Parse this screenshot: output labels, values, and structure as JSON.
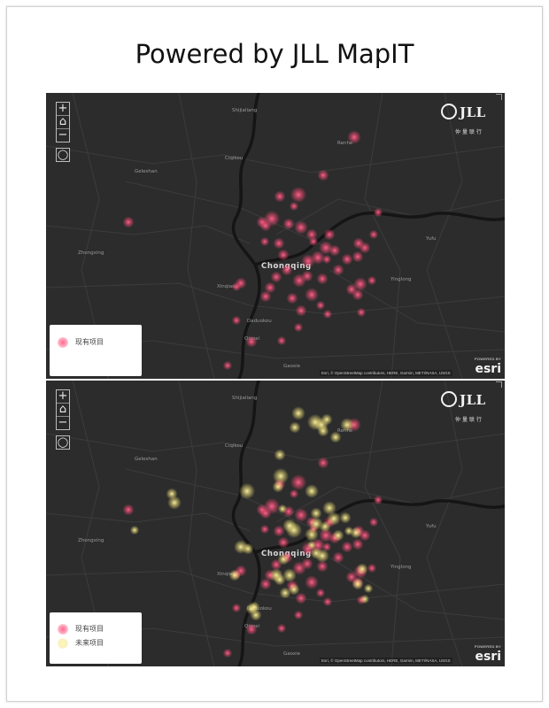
{
  "title": "Powered by JLL MapIT",
  "maps": [
    {
      "legend": [
        {
          "label": "现有项目",
          "color": "#ff4d7a"
        }
      ]
    },
    {
      "legend": [
        {
          "label": "现有项目",
          "color": "#ff4d7a"
        },
        {
          "label": "未来项目",
          "color": "#f1e27a"
        }
      ]
    }
  ],
  "controls": {
    "zoom_in": "+",
    "home": "⌂",
    "zoom_out": "−",
    "locate": "◯"
  },
  "logo": {
    "brand": "JLL",
    "brand_cn": "仲量联行"
  },
  "attribution": "Esri, © OpenStreetMap contributors, HERE, Garmin, METI/NASA, USGS",
  "powered_by": "POWERED BY",
  "esri": "esri",
  "place_labels": {
    "chongqing": "Chongqing",
    "shijialiang": "Shijialiang",
    "renhe": "Renhe",
    "ciqikou": "Ciqikou",
    "geleshan": "Geleshan",
    "zhongxing": "Zhongxing",
    "yufu": "Yufu",
    "xinqiao": "Xinqiao",
    "yinglong": "Yinglong",
    "daduokou": "Daduokou",
    "qiaoxi": "Qiaoxi",
    "gaoxie": "Gaoxie"
  },
  "colors": {
    "map_background": "#2c2c2c",
    "existing": "#ff4d7a",
    "future": "#f1e27a"
  }
}
